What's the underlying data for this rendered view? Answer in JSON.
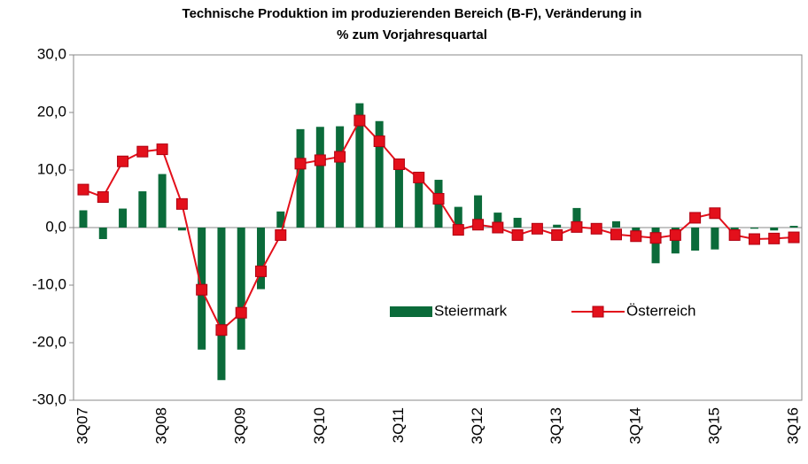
{
  "chart_data": {
    "type": "bar_line",
    "title": [
      "Technische Produktion im produzierenden Bereich (B-F), Veränderung in",
      "% zum Vorjahresquartal"
    ],
    "categories": [
      "3Q07",
      null,
      null,
      null,
      "3Q08",
      null,
      null,
      null,
      "3Q09",
      null,
      null,
      null,
      "3Q10",
      null,
      null,
      null,
      "3Q11",
      null,
      null,
      null,
      "3Q12",
      null,
      null,
      null,
      "3Q13",
      null,
      null,
      null,
      "3Q14",
      null,
      null,
      null,
      "3Q15",
      null,
      null,
      null,
      "3Q16"
    ],
    "series": [
      {
        "name": "Steiermark",
        "type": "bar",
        "color": "#0b6b3a",
        "values": [
          3.0,
          -2.0,
          3.3,
          6.3,
          9.3,
          -0.5,
          -21.2,
          -26.5,
          -21.2,
          -10.7,
          2.8,
          17.1,
          17.5,
          17.6,
          21.6,
          18.5,
          11.2,
          8.8,
          8.3,
          3.6,
          5.6,
          2.6,
          1.7,
          0.2,
          0.5,
          3.4,
          0.4,
          1.1,
          -0.8,
          -6.2,
          -4.5,
          -4.0,
          -3.8,
          -0.3,
          -0.2,
          -0.5,
          0.3
        ]
      },
      {
        "name": "Österreich",
        "type": "line",
        "color": "#e3101b",
        "values": [
          6.6,
          5.3,
          11.5,
          13.2,
          13.6,
          4.1,
          -10.8,
          -17.8,
          -14.8,
          -7.6,
          -1.3,
          11.1,
          11.7,
          12.3,
          18.6,
          15.0,
          11.0,
          8.7,
          5.0,
          -0.4,
          0.5,
          0.0,
          -1.3,
          -0.2,
          -1.3,
          0.1,
          -0.2,
          -1.2,
          -1.5,
          -1.8,
          -1.3,
          1.7,
          2.5,
          -1.3,
          -2.0,
          -1.9,
          -1.7
        ]
      }
    ],
    "ylim": [
      -30,
      30
    ],
    "yticks": [
      {
        "value": -30,
        "label": "-30,0"
      },
      {
        "value": -20,
        "label": "-20,0"
      },
      {
        "value": -10,
        "label": "-10,0"
      },
      {
        "value": 0,
        "label": "0,0"
      },
      {
        "value": 10,
        "label": "10,0"
      },
      {
        "value": 20,
        "label": "20,0"
      },
      {
        "value": 30,
        "label": "30,0"
      }
    ],
    "grid": false
  }
}
